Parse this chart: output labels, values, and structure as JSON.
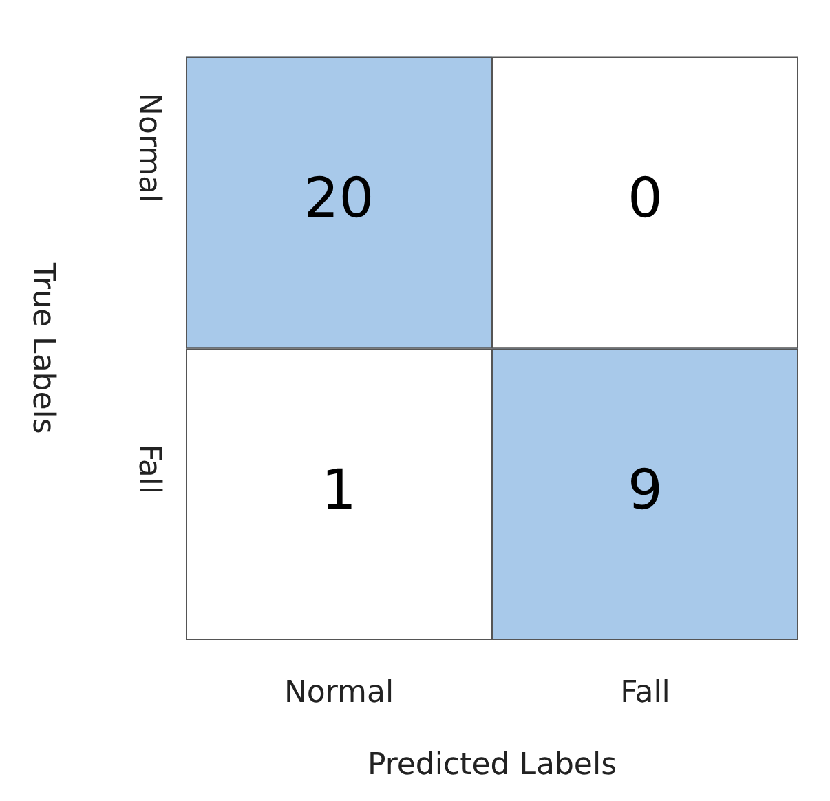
{
  "chart_data": {
    "type": "heatmap",
    "xlabel": "Predicted Labels",
    "ylabel": "True Labels",
    "categories": [
      "Normal",
      "Fall"
    ],
    "y_categories": [
      "Normal",
      "Fall"
    ],
    "cells": [
      [
        20,
        0
      ],
      [
        1,
        9
      ]
    ],
    "colors": [
      [
        "#a8c9ea",
        "#ffffff"
      ],
      [
        "#ffffff",
        "#a8c9ea"
      ]
    ],
    "data_labels": true
  }
}
